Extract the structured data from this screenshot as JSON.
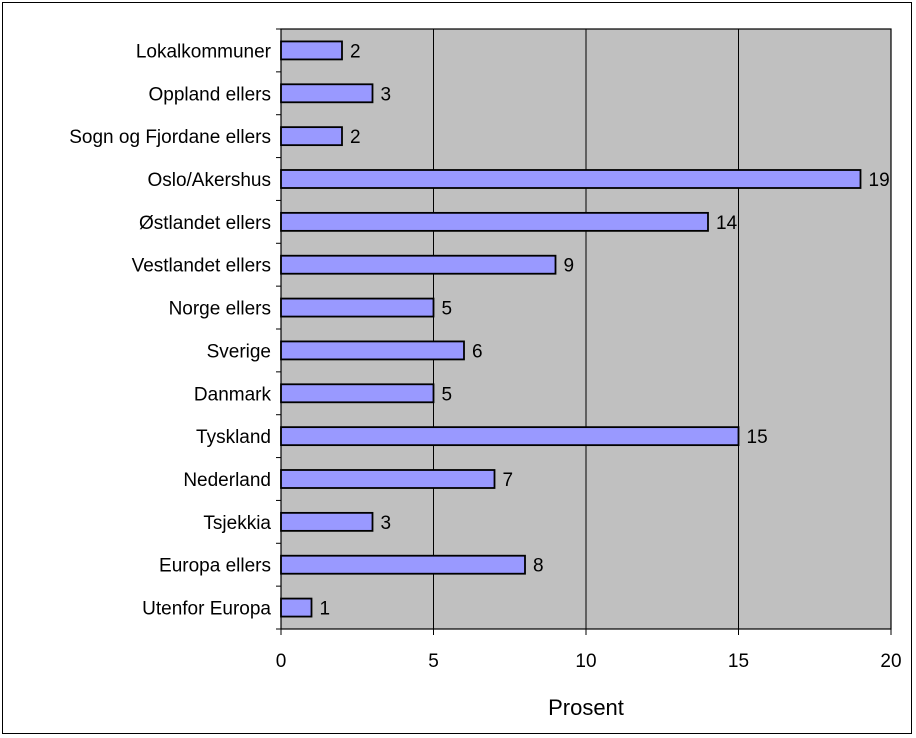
{
  "chart_data": {
    "type": "bar",
    "orientation": "horizontal",
    "categories": [
      "Lokalkommuner",
      "Oppland ellers",
      "Sogn og Fjordane ellers",
      "Oslo/Akershus",
      "Østlandet ellers",
      "Vestlandet ellers",
      "Norge ellers",
      "Sverige",
      "Danmark",
      "Tyskland",
      "Nederland",
      "Tsjekkia",
      "Europa ellers",
      "Utenfor Europa"
    ],
    "values": [
      2,
      3,
      2,
      19,
      14,
      9,
      5,
      6,
      5,
      15,
      7,
      3,
      8,
      1
    ],
    "xlabel": "Prosent",
    "ylabel": "",
    "title": "",
    "xlim": [
      0,
      20
    ],
    "xticks": [
      "0",
      "5",
      "10",
      "15",
      "20"
    ],
    "grid": "vertical major gridlines",
    "legend": "none",
    "colors": {
      "bar_fill": "#9999ff",
      "bar_stroke": "#000000",
      "plot_background": "#c0c0c0",
      "gridline": "#000000"
    }
  }
}
